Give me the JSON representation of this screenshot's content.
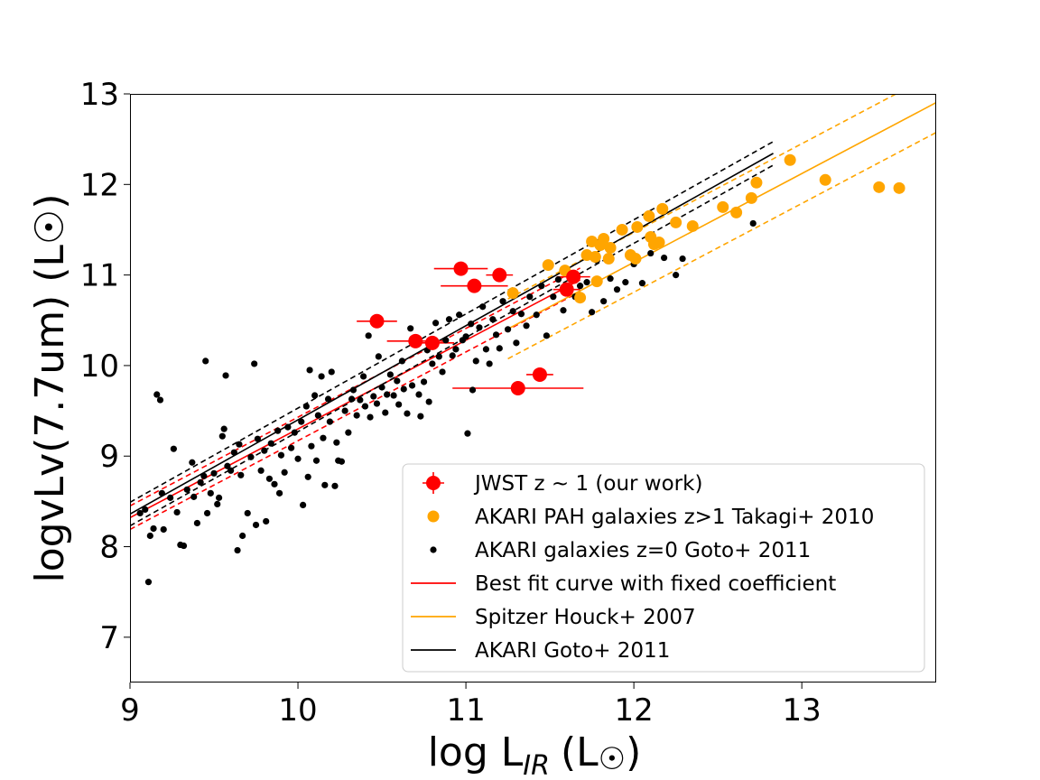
{
  "chart_data": {
    "type": "scatter",
    "xlabel_main": "log L",
    "xlabel_sub": "IR",
    "xlabel_unit": "(L",
    "xlabel_sun": "☉",
    "xlabel_close": ")",
    "ylabel": "logvLv(7.7um) (L☉)",
    "xlim": [
      9,
      13.8
    ],
    "ylim": [
      6.5,
      13
    ],
    "xticks": [
      9,
      10,
      11,
      12,
      13
    ],
    "yticks": [
      7,
      8,
      9,
      10,
      11,
      12,
      13
    ],
    "legend_position": "lower-right",
    "colors": {
      "red": "#ff0000",
      "orange": "#ffa500",
      "black": "#000000"
    },
    "legend": [
      {
        "label": "JWST z$\\sim$1 (our work)",
        "display": "JWST z ∼ 1 (our work)",
        "kind": "errorbar",
        "color": "#ff0000"
      },
      {
        "label": "AKARI PAH galaxies z>1 Takagi+ 2010",
        "kind": "big-dot",
        "color": "#ffa500"
      },
      {
        "label": "AKARI galaxies z=0 Goto+ 2011",
        "kind": "small-dot",
        "color": "#000000"
      },
      {
        "label": "Best fit curve with fixed coefficient",
        "kind": "line",
        "color": "#ff0000"
      },
      {
        "label": "Spitzer Houck+ 2007",
        "kind": "line",
        "color": "#ffa500"
      },
      {
        "label": "AKARI Goto+ 2011",
        "kind": "line",
        "color": "#000000"
      }
    ],
    "series": [
      {
        "name": "JWST z∼1 (our work)",
        "color": "#ff0000",
        "points": [
          {
            "x": 10.47,
            "y": 10.49,
            "xerr": 0.12
          },
          {
            "x": 10.7,
            "y": 10.27,
            "xerr": 0.17
          },
          {
            "x": 10.8,
            "y": 10.25,
            "xerr": 0.13
          },
          {
            "x": 10.97,
            "y": 11.07,
            "xerr": 0.16
          },
          {
            "x": 11.05,
            "y": 10.88,
            "xerr": 0.2
          },
          {
            "x": 11.2,
            "y": 11.0,
            "xerr": 0.08
          },
          {
            "x": 11.31,
            "y": 9.75,
            "xerr": 0.39
          },
          {
            "x": 11.44,
            "y": 9.9,
            "xerr": 0.08
          },
          {
            "x": 11.6,
            "y": 10.84,
            "xerr": 0.08
          },
          {
            "x": 11.64,
            "y": 10.98,
            "xerr": 0.1
          }
        ]
      },
      {
        "name": "AKARI PAH galaxies z>1 Takagi+ 2010",
        "color": "#ffa500",
        "points": [
          [
            11.28,
            10.8
          ],
          [
            11.49,
            11.11
          ],
          [
            11.59,
            11.05
          ],
          [
            11.68,
            10.75
          ],
          [
            11.72,
            11.22
          ],
          [
            11.75,
            11.37
          ],
          [
            11.77,
            11.2
          ],
          [
            11.78,
            10.93
          ],
          [
            11.8,
            11.33
          ],
          [
            11.82,
            11.4
          ],
          [
            11.85,
            11.18
          ],
          [
            11.86,
            11.3
          ],
          [
            11.93,
            11.5
          ],
          [
            11.98,
            11.22
          ],
          [
            12.01,
            11.18
          ],
          [
            12.02,
            11.53
          ],
          [
            12.09,
            11.65
          ],
          [
            12.1,
            11.42
          ],
          [
            12.12,
            11.34
          ],
          [
            12.15,
            11.36
          ],
          [
            12.17,
            11.73
          ],
          [
            12.25,
            11.58
          ],
          [
            12.35,
            11.54
          ],
          [
            12.53,
            11.75
          ],
          [
            12.61,
            11.69
          ],
          [
            12.7,
            11.85
          ],
          [
            12.73,
            12.02
          ],
          [
            12.93,
            12.27
          ],
          [
            13.14,
            12.05
          ],
          [
            13.46,
            11.97
          ],
          [
            13.58,
            11.96
          ]
        ]
      },
      {
        "name": "AKARI galaxies z=0 Goto+ 2011",
        "color": "#000000",
        "points": [
          [
            9.06,
            8.37
          ],
          [
            9.09,
            8.41
          ],
          [
            9.11,
            7.61
          ],
          [
            9.12,
            8.12
          ],
          [
            9.14,
            8.2
          ],
          [
            9.16,
            9.68
          ],
          [
            9.18,
            9.62
          ],
          [
            9.19,
            8.59
          ],
          [
            9.2,
            8.19
          ],
          [
            9.24,
            8.54
          ],
          [
            9.26,
            9.08
          ],
          [
            9.28,
            8.38
          ],
          [
            9.3,
            8.02
          ],
          [
            9.32,
            8.01
          ],
          [
            9.34,
            8.63
          ],
          [
            9.37,
            8.93
          ],
          [
            9.38,
            8.55
          ],
          [
            9.4,
            8.26
          ],
          [
            9.42,
            8.71
          ],
          [
            9.44,
            8.78
          ],
          [
            9.45,
            10.05
          ],
          [
            9.46,
            8.37
          ],
          [
            9.48,
            8.59
          ],
          [
            9.5,
            8.81
          ],
          [
            9.52,
            8.47
          ],
          [
            9.53,
            8.54
          ],
          [
            9.55,
            9.22
          ],
          [
            9.56,
            9.3
          ],
          [
            9.57,
            9.89
          ],
          [
            9.58,
            8.89
          ],
          [
            9.6,
            8.84
          ],
          [
            9.62,
            9.04
          ],
          [
            9.64,
            7.96
          ],
          [
            9.65,
            9.13
          ],
          [
            9.66,
            8.79
          ],
          [
            9.67,
            8.12
          ],
          [
            9.7,
            8.37
          ],
          [
            9.72,
            8.99
          ],
          [
            9.74,
            10.02
          ],
          [
            9.75,
            8.24
          ],
          [
            9.76,
            9.19
          ],
          [
            9.78,
            8.84
          ],
          [
            9.8,
            9.06
          ],
          [
            9.81,
            8.28
          ],
          [
            9.83,
            8.75
          ],
          [
            9.84,
            9.14
          ],
          [
            9.86,
            8.69
          ],
          [
            9.88,
            9.28
          ],
          [
            9.89,
            8.59
          ],
          [
            9.9,
            9.01
          ],
          [
            9.92,
            8.82
          ],
          [
            9.94,
            9.32
          ],
          [
            9.96,
            9.09
          ],
          [
            9.98,
            9.26
          ],
          [
            10.0,
            8.97
          ],
          [
            10.02,
            9.38
          ],
          [
            10.03,
            8.46
          ],
          [
            10.05,
            9.55
          ],
          [
            10.06,
            8.77
          ],
          [
            10.07,
            9.95
          ],
          [
            10.08,
            9.11
          ],
          [
            10.1,
            9.67
          ],
          [
            10.11,
            8.95
          ],
          [
            10.12,
            9.45
          ],
          [
            10.14,
            9.88
          ],
          [
            10.15,
            9.2
          ],
          [
            10.16,
            8.68
          ],
          [
            10.18,
            9.63
          ],
          [
            10.19,
            9.38
          ],
          [
            10.2,
            9.93
          ],
          [
            10.22,
            8.67
          ],
          [
            10.23,
            9.15
          ],
          [
            10.24,
            8.95
          ],
          [
            10.26,
            8.94
          ],
          [
            10.28,
            9.5
          ],
          [
            10.3,
            9.26
          ],
          [
            10.32,
            9.63
          ],
          [
            10.33,
            9.73
          ],
          [
            10.35,
            9.45
          ],
          [
            10.37,
            9.62
          ],
          [
            10.39,
            9.88
          ],
          [
            10.4,
            9.55
          ],
          [
            10.42,
            10.33
          ],
          [
            10.43,
            9.43
          ],
          [
            10.45,
            9.66
          ],
          [
            10.47,
            9.58
          ],
          [
            10.48,
            10.1
          ],
          [
            10.5,
            9.76
          ],
          [
            10.52,
            9.48
          ],
          [
            10.53,
            9.68
          ],
          [
            10.55,
            9.9
          ],
          [
            10.57,
            9.67
          ],
          [
            10.59,
            9.83
          ],
          [
            10.6,
            9.57
          ],
          [
            10.62,
            10.05
          ],
          [
            10.63,
            9.74
          ],
          [
            10.65,
            9.47
          ],
          [
            10.67,
            10.41
          ],
          [
            10.68,
            9.78
          ],
          [
            10.7,
            10.26
          ],
          [
            10.72,
            9.68
          ],
          [
            10.73,
            9.44
          ],
          [
            10.75,
            9.82
          ],
          [
            10.77,
            10.17
          ],
          [
            10.78,
            9.6
          ],
          [
            10.8,
            10.02
          ],
          [
            10.82,
            10.47
          ],
          [
            10.84,
            10.1
          ],
          [
            10.86,
            9.93
          ],
          [
            10.88,
            10.28
          ],
          [
            10.9,
            10.51
          ],
          [
            10.92,
            10.11
          ],
          [
            10.94,
            10.18
          ],
          [
            10.96,
            10.56
          ],
          [
            10.98,
            10.28
          ],
          [
            11.0,
            10.32
          ],
          [
            11.01,
            9.25
          ],
          [
            11.03,
            10.46
          ],
          [
            11.04,
            9.73
          ],
          [
            11.06,
            10.05
          ],
          [
            11.08,
            10.42
          ],
          [
            11.1,
            10.65
          ],
          [
            11.12,
            10.18
          ],
          [
            11.14,
            10.02
          ],
          [
            11.16,
            10.51
          ],
          [
            11.18,
            10.34
          ],
          [
            11.2,
            10.19
          ],
          [
            11.22,
            10.71
          ],
          [
            11.25,
            10.4
          ],
          [
            11.28,
            10.6
          ],
          [
            11.3,
            10.25
          ],
          [
            11.33,
            10.57
          ],
          [
            11.36,
            10.44
          ],
          [
            11.38,
            10.76
          ],
          [
            11.42,
            10.56
          ],
          [
            11.45,
            10.88
          ],
          [
            11.48,
            10.33
          ],
          [
            11.52,
            10.76
          ],
          [
            11.55,
            10.95
          ],
          [
            11.58,
            10.61
          ],
          [
            11.62,
            11.01
          ],
          [
            11.65,
            10.76
          ],
          [
            11.68,
            10.88
          ],
          [
            11.72,
            10.92
          ],
          [
            11.75,
            10.59
          ],
          [
            11.78,
            11.16
          ],
          [
            11.82,
            10.71
          ],
          [
            11.86,
            10.96
          ],
          [
            11.9,
            10.84
          ],
          [
            11.95,
            10.92
          ],
          [
            12.0,
            11.12
          ],
          [
            12.05,
            10.91
          ],
          [
            12.1,
            11.24
          ],
          [
            12.18,
            11.19
          ],
          [
            12.25,
            11.0
          ],
          [
            12.29,
            11.18
          ],
          [
            12.71,
            11.57
          ]
        ]
      }
    ],
    "lines": [
      {
        "name": "Best fit curve with fixed coefficient",
        "color": "#ff0000",
        "x_range": [
          9.0,
          11.68
        ],
        "slope": 0.98,
        "intercept": -0.5,
        "band": 0.13,
        "style": "solid-with-dashed-band"
      },
      {
        "name": "Spitzer Houck+ 2007",
        "color": "#ffa500",
        "x_range": [
          11.25,
          13.8
        ],
        "slope": 0.98,
        "intercept": -0.62,
        "band": 0.33,
        "style": "solid-with-dashed-band"
      },
      {
        "name": "AKARI Goto+ 2011",
        "color": "#000000",
        "x_range": [
          9.0,
          12.83
        ],
        "slope": 1.04,
        "intercept": -1.0,
        "band": 0.13,
        "style": "solid-with-dashed-band"
      }
    ]
  }
}
